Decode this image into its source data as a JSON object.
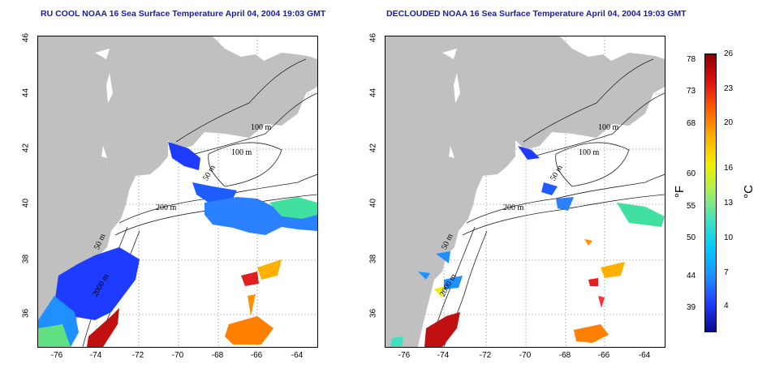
{
  "titles": {
    "left": "RU COOL NOAA 16 Sea Surface Temperature April 04, 2004 19:03 GMT",
    "right": "DECLOUDED NOAA 16 Sea Surface Temperature April 04, 2004 19:03 GMT"
  },
  "axes": {
    "x_ticks": [
      "-76",
      "-74",
      "-72",
      "-70",
      "-68",
      "-66",
      "-64"
    ],
    "y_ticks": [
      "36",
      "38",
      "40",
      "42",
      "44",
      "46"
    ],
    "lon_range": [
      -77.25,
      -63.0
    ],
    "lat_range": [
      35.0,
      46.0
    ]
  },
  "contour_labels": [
    "100 m",
    "100 m",
    "50 m",
    "200 m",
    "50 m",
    "2000 m"
  ],
  "colorbar": {
    "fahrenheit_ticks": [
      "78",
      "73",
      "68",
      "60",
      "55",
      "50",
      "44",
      "39"
    ],
    "celsius_ticks": [
      "26",
      "23",
      "20",
      "16",
      "13",
      "10",
      "7",
      "4"
    ],
    "unit_f": "°F",
    "unit_c": "°C",
    "colors": [
      "#0a0a8a",
      "#1e3cff",
      "#1e90ff",
      "#00c8ff",
      "#40e0c0",
      "#a0f060",
      "#f0f000",
      "#ffb000",
      "#ff6000",
      "#e01010",
      "#8b0000"
    ]
  },
  "colors": {
    "land": "#c0c0c0",
    "ocean": "#ffffff",
    "grid": "#b0b0b0",
    "title": "#1a1aa8"
  }
}
